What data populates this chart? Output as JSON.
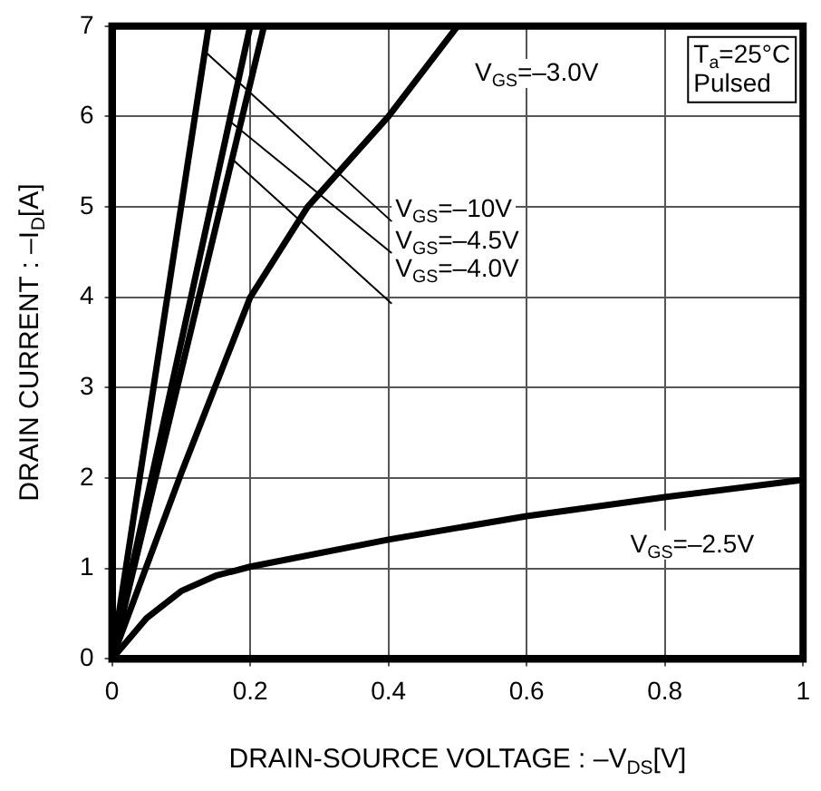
{
  "chart_data": {
    "type": "line",
    "xlabel": "DRAIN-SOURCE VOLTAGE : –V$_{DS}$[V]",
    "ylabel": "DRAIN CURRENT : –I$_{D}$[A]",
    "xlim": [
      0,
      1
    ],
    "xticks": [
      0,
      0.2,
      0.4,
      0.6,
      0.8,
      1
    ],
    "ylim": [
      0,
      7
    ],
    "yticks": [
      0,
      1,
      2,
      3,
      4,
      5,
      6,
      7
    ],
    "grid": true,
    "legend": false,
    "marker": "none",
    "line_style": "solid",
    "annotations": [
      "T$_{a}$=25°C",
      "Pulsed"
    ],
    "series": [
      {
        "name": "V$_{GS}$=–10V",
        "color": "#000000",
        "x": [
          0,
          0.14
        ],
        "values": [
          0,
          7
        ]
      },
      {
        "name": "V$_{GS}$=–4.5V",
        "color": "#000000",
        "x": [
          0,
          0.2
        ],
        "values": [
          0,
          7
        ]
      },
      {
        "name": "V$_{GS}$=–4.0V",
        "color": "#000000",
        "x": [
          0,
          0.22
        ],
        "values": [
          0,
          7
        ]
      },
      {
        "name": "V$_{GS}$=–3.0V",
        "color": "#000000",
        "x": [
          0,
          0.1,
          0.2,
          0.283,
          0.4,
          0.5
        ],
        "values": [
          0,
          2.05,
          4,
          5,
          6,
          7
        ]
      },
      {
        "name": "V$_{GS}$=–2.5V",
        "color": "#000000",
        "x": [
          0,
          0.05,
          0.1,
          0.15,
          0.2,
          0.4,
          0.6,
          0.8,
          1
        ],
        "values": [
          0,
          0.45,
          0.75,
          0.92,
          1.02,
          1.32,
          1.58,
          1.79,
          1.98
        ]
      }
    ]
  }
}
